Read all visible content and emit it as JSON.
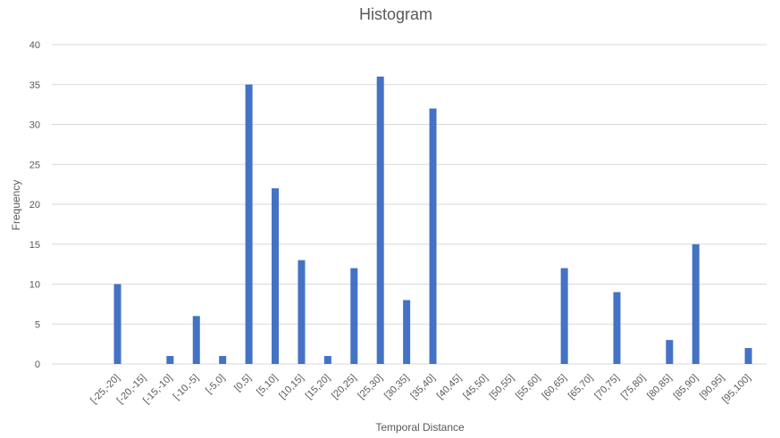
{
  "chart_data": {
    "type": "bar",
    "title": "Histogram",
    "xlabel": "Temporal Distance",
    "ylabel": "Frequency",
    "ylim": [
      0,
      40
    ],
    "yticks": [
      "0",
      "5",
      "10",
      "15",
      "20",
      "25",
      "30",
      "35",
      "40"
    ],
    "grid": true,
    "bar_color": "#4472c4",
    "categories": [
      "[-25,-20]",
      "[-20,-15]",
      "[-15,-10]",
      "[-10,-5]",
      "[-5,0]",
      "[0,5]",
      "[5,10]",
      "[10,15]",
      "[15,20]",
      "[20,25]",
      "[25,30]",
      "[30,35]",
      "[35,40]",
      "[40,45]",
      "[45,50]",
      "[50,55]",
      "[55,60]",
      "[60,65]",
      "[65,70]",
      "[70,75]",
      "[75,80]",
      "[80,85]",
      "[85,90]",
      "[90,95]",
      "[95,100]"
    ],
    "values": [
      10,
      0,
      1,
      6,
      1,
      35,
      22,
      13,
      1,
      12,
      36,
      8,
      32,
      0,
      0,
      0,
      0,
      12,
      0,
      9,
      0,
      3,
      15,
      0,
      2
    ]
  }
}
